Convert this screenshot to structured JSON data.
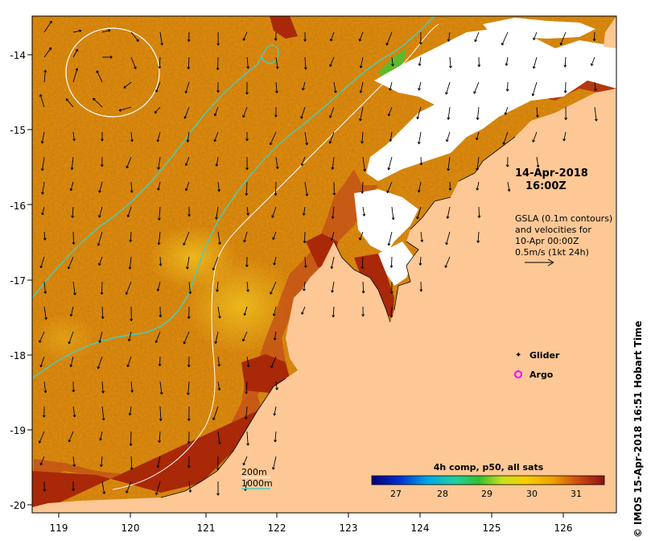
{
  "map": {
    "timestamp_date": "14-Apr-2018",
    "timestamp_time": "16:00Z",
    "notes": [
      "GSLA (0.1m contours)",
      "and velocities for",
      "10-Apr 00:00Z",
      "0.5m/s (1kt 24h)"
    ],
    "glider_label": "Glider",
    "argo_label": "Argo",
    "contour_200": "200m",
    "contour_1000": "1000m",
    "colorbar_title": "4h comp, p50, all sats",
    "colorbar_ticks": [
      "27",
      "28",
      "29",
      "30",
      "31"
    ],
    "credit": "IMOS 15-Apr-2018 16:51 Hobart Time",
    "colors": {
      "land": "#fdc896",
      "ocean_warm": "#e08a10",
      "ocean_hot": "#a82808",
      "cloud": "#ffffff",
      "contour_1000": "#40d0c0",
      "contour_200": "#ffffff",
      "glider": "#ff00ff",
      "argo": "#ff00ff"
    },
    "x_axis": {
      "labels": [
        "119",
        "120",
        "121",
        "122",
        "123",
        "124",
        "125",
        "126"
      ]
    },
    "y_axis": {
      "labels": [
        "-14",
        "-15",
        "-16",
        "-17",
        "-18",
        "-19",
        "-20"
      ]
    }
  }
}
